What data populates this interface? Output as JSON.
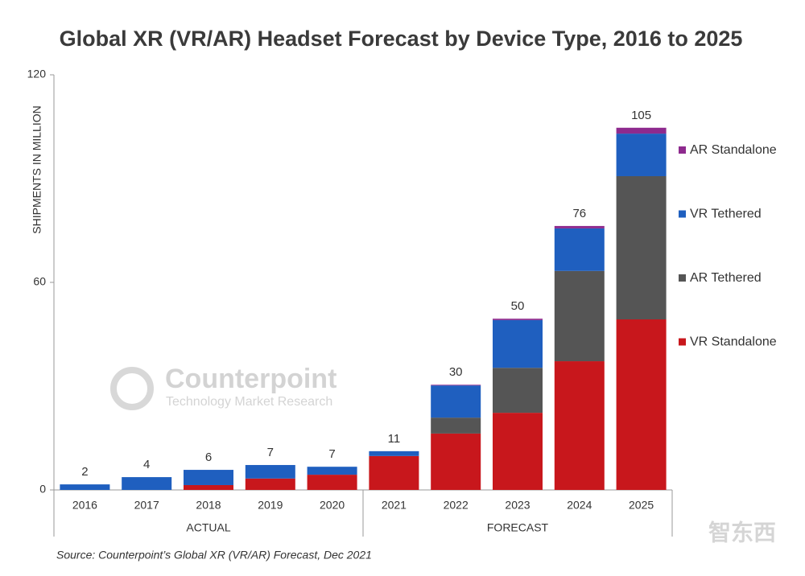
{
  "chart_data": {
    "type": "stacked_bar",
    "title": "Global XR (VR/AR) Headset Forecast by Device Type, 2016 to 2025",
    "y_label": "SHIPMENTS IN MILLION",
    "categories": [
      "2016",
      "2017",
      "2018",
      "2019",
      "2020",
      "2021",
      "2022",
      "2023",
      "2024",
      "2025"
    ],
    "groups": [
      "ACTUAL",
      "FORECAST"
    ],
    "series": [
      {
        "name": "VR Standalone",
        "color": "#c8171c",
        "values": [
          0,
          0,
          1.4,
          3.3,
          4.4,
          9.8,
          16.3,
          22.3,
          37.2,
          49.3
        ]
      },
      {
        "name": "AR Tethered",
        "color": "#555555",
        "values": [
          0,
          0,
          0,
          0,
          0,
          0,
          4.6,
          13,
          26.1,
          41.4
        ]
      },
      {
        "name": "VR Tethered",
        "color": "#1f5fbf",
        "values": [
          1.6,
          3.7,
          4.4,
          3.9,
          2.3,
          1.4,
          9.3,
          13.8,
          12.3,
          12.3
        ]
      },
      {
        "name": "AR Standalone",
        "color": "#8e2a8e",
        "values": [
          0,
          0,
          0,
          0,
          0,
          0,
          0.2,
          0.4,
          0.7,
          1.7
        ]
      }
    ],
    "totals": [
      2,
      4,
      6,
      7,
      7,
      11,
      30,
      50,
      76,
      105
    ],
    "ylim": [
      0,
      120
    ],
    "yticks": [
      0,
      60,
      120
    ],
    "source": "Source: Counterpoint’s Global XR (VR/AR) Forecast, Dec 2021",
    "watermark": {
      "name": "Counterpoint",
      "tagline": "Technology Market Research"
    },
    "corner_mark": "智东西"
  }
}
